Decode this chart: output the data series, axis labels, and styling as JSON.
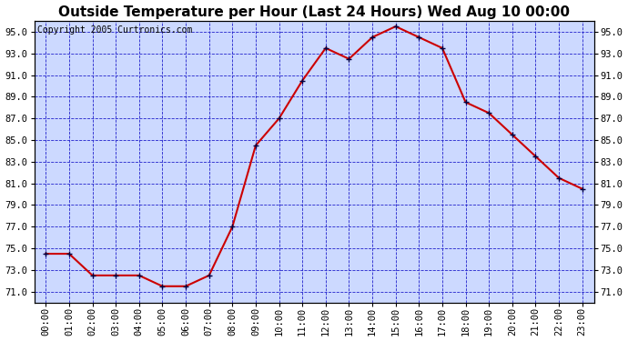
{
  "title": "Outside Temperature per Hour (Last 24 Hours) Wed Aug 10 00:00",
  "copyright": "Copyright 2005 Curtronics.com",
  "hours": [
    "00:00",
    "01:00",
    "02:00",
    "03:00",
    "04:00",
    "05:00",
    "06:00",
    "07:00",
    "08:00",
    "09:00",
    "10:00",
    "11:00",
    "12:00",
    "13:00",
    "14:00",
    "15:00",
    "16:00",
    "17:00",
    "18:00",
    "19:00",
    "20:00",
    "21:00",
    "22:00",
    "23:00"
  ],
  "temperatures": [
    74.5,
    74.5,
    72.5,
    72.5,
    72.5,
    71.5,
    71.5,
    72.5,
    77.0,
    84.5,
    87.0,
    90.5,
    93.5,
    92.5,
    94.5,
    95.5,
    94.5,
    93.5,
    88.5,
    87.5,
    85.5,
    83.5,
    81.5,
    80.5
  ],
  "line_color": "#cc0000",
  "marker_color": "#000044",
  "plot_bg_color": "#ccd9ff",
  "grid_color": "#2222cc",
  "title_color": "#000000",
  "title_fontsize": 11,
  "copyright_fontsize": 7,
  "tick_fontsize": 7.5,
  "ylim": [
    70.0,
    96.0
  ],
  "yticks": [
    71.0,
    73.0,
    75.0,
    77.0,
    79.0,
    81.0,
    83.0,
    85.0,
    87.0,
    89.0,
    91.0,
    93.0,
    95.0
  ],
  "outer_bg": "#ffffff"
}
